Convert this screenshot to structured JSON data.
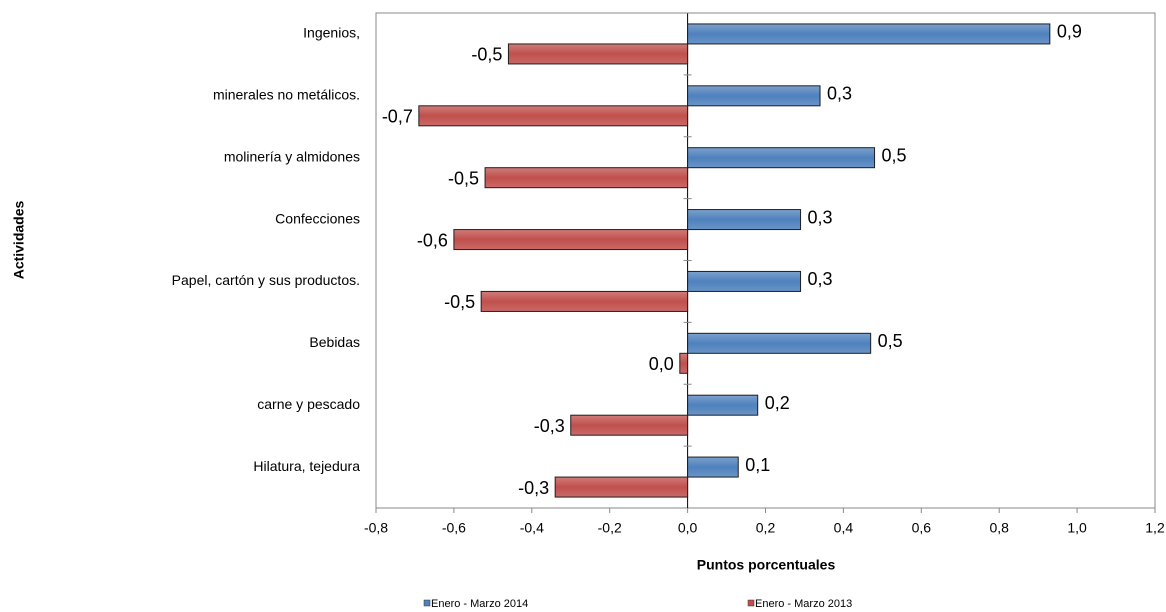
{
  "chart_data": {
    "type": "hbar",
    "y_label": "Actividades",
    "x_label": "Puntos porcentuales",
    "categories": [
      "Ingenios,",
      "minerales no metálicos.",
      "molinería y almidones",
      "Confecciones",
      "Papel, cartón y sus productos.",
      "Bebidas",
      "carne y pescado",
      "Hilatura, tejedura"
    ],
    "series": [
      {
        "name": "Enero - Marzo 2014",
        "color": "#4f81bd",
        "values": [
          0.93,
          0.34,
          0.48,
          0.29,
          0.29,
          0.47,
          0.18,
          0.13
        ],
        "value_labels": [
          "0,9",
          "0,3",
          "0,5",
          "0,3",
          "0,3",
          "0,5",
          "0,2",
          "0,1"
        ]
      },
      {
        "name": "Enero - Marzo 2013",
        "color": "#c0504d",
        "values": [
          -0.46,
          -0.69,
          -0.52,
          -0.6,
          -0.53,
          -0.02,
          -0.3,
          -0.34
        ],
        "value_labels": [
          "-0,5",
          "-0,7",
          "-0,5",
          "-0,6",
          "-0,5",
          "0,0",
          "-0,3",
          "-0,3"
        ]
      }
    ],
    "xlim": [
      -0.8,
      1.2
    ],
    "xticks": [
      {
        "value": -0.8,
        "label": "-0,8"
      },
      {
        "value": -0.6,
        "label": "-0,6"
      },
      {
        "value": -0.4,
        "label": "-0,4"
      },
      {
        "value": -0.2,
        "label": "-0,2"
      },
      {
        "value": 0,
        "label": "0,0"
      },
      {
        "value": 0.2,
        "label": "0,2"
      },
      {
        "value": 0.4,
        "label": "0,4"
      },
      {
        "value": 0.6,
        "label": "0,6"
      },
      {
        "value": 0.8,
        "label": "0,8"
      },
      {
        "value": 1.0,
        "label": "1,0"
      },
      {
        "value": 1.2,
        "label": "1,2"
      }
    ],
    "legend": "bottom"
  }
}
